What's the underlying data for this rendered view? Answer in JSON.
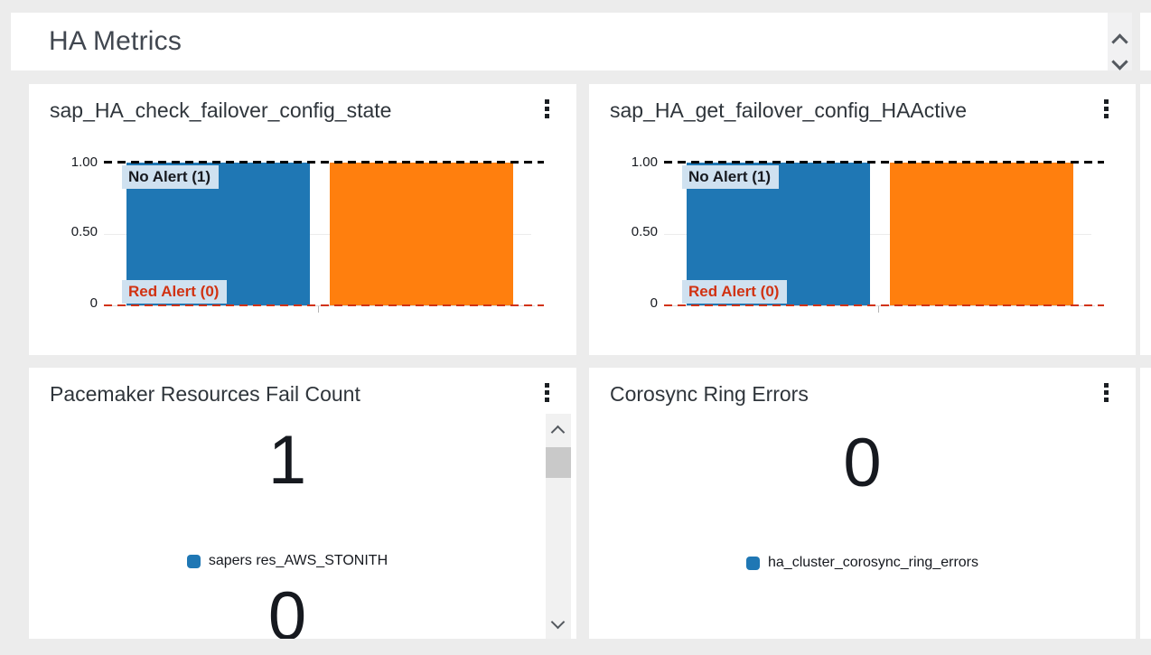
{
  "header": {
    "title": "HA Metrics"
  },
  "colors": {
    "page_bg": "#ececec",
    "bar_blue": "#1f77b4",
    "bar_orange": "#ff7f0e",
    "annotation_bg": "#cfe1f0",
    "alert_red": "#d13212",
    "legend_blue": "#1f77b4"
  },
  "widgets": [
    {
      "title": "sap_HA_check_failover_config_state",
      "menu_icon": "kebab-menu",
      "chart": {
        "type": "bar",
        "ylim": [
          0,
          1
        ],
        "y_ticks": [
          "1.00",
          "0.50",
          "0"
        ],
        "series": [
          {
            "value": 1,
            "color": "#1f77b4"
          },
          {
            "value": 1,
            "color": "#ff7f0e"
          }
        ],
        "annotations": [
          {
            "label": "No Alert (1)",
            "value": 1,
            "line_color": "#000000"
          },
          {
            "label": "Red Alert (0)",
            "value": 0,
            "line_color": "#d13212"
          }
        ]
      }
    },
    {
      "title": "sap_HA_get_failover_config_HAActive",
      "menu_icon": "kebab-menu",
      "chart": {
        "type": "bar",
        "ylim": [
          0,
          1
        ],
        "y_ticks": [
          "1.00",
          "0.50",
          "0"
        ],
        "series": [
          {
            "value": 1,
            "color": "#1f77b4"
          },
          {
            "value": 1,
            "color": "#ff7f0e"
          }
        ],
        "annotations": [
          {
            "label": "No Alert (1)",
            "value": 1,
            "line_color": "#000000"
          },
          {
            "label": "Red Alert (0)",
            "value": 0,
            "line_color": "#d13212"
          }
        ]
      }
    },
    {
      "title": "Pacemaker Resources Fail Count",
      "menu_icon": "kebab-menu",
      "metrics": [
        {
          "value": "1",
          "label": "sapers res_AWS_STONITH",
          "color": "#1f77b4"
        },
        {
          "value": "0"
        }
      ]
    },
    {
      "title": "Corosync Ring Errors",
      "menu_icon": "kebab-menu",
      "metrics": [
        {
          "value": "0",
          "label": "ha_cluster_corosync_ring_errors",
          "color": "#1f77b4"
        }
      ]
    }
  ]
}
